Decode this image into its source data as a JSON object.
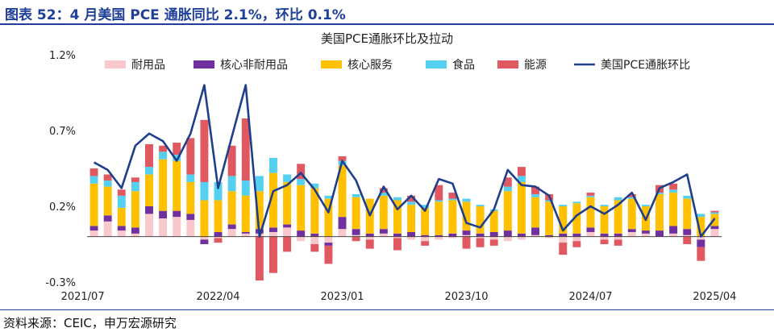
{
  "header": {
    "title": "图表 52：4 月美国 PCE 通胀同比 2.1%，环比 0.1%"
  },
  "footer": {
    "source": "资料来源：CEIC，申万宏源研究"
  },
  "colors": {
    "durable": "#f8c8cc",
    "core_nondurable": "#7030a0",
    "core_services": "#ffc000",
    "food": "#56d0f0",
    "energy": "#e05860",
    "line": "#1f3f8c",
    "title": "#1f3f99"
  },
  "chart_data": {
    "type": "bar",
    "stacked": true,
    "title": "美国PCE通胀环比及拉动",
    "x_tick_labels": [
      "2021/07",
      "2022/04",
      "2023/01",
      "2023/10",
      "2024/07",
      "2025/04"
    ],
    "y_tick_labels": [
      "1.2%",
      "0.7%",
      "0.2%",
      "-0.3%"
    ],
    "ylim": [
      -0.3,
      1.2
    ],
    "grid": false,
    "legend_position": "top",
    "categories": [
      "2021/07",
      "2021/08",
      "2021/09",
      "2021/10",
      "2021/11",
      "2021/12",
      "2022/01",
      "2022/02",
      "2022/03",
      "2022/04",
      "2022/05",
      "2022/06",
      "2022/07",
      "2022/08",
      "2022/09",
      "2022/10",
      "2022/11",
      "2022/12",
      "2023/01",
      "2023/02",
      "2023/03",
      "2023/04",
      "2023/05",
      "2023/06",
      "2023/07",
      "2023/08",
      "2023/09",
      "2023/10",
      "2023/11",
      "2023/12",
      "2024/01",
      "2024/02",
      "2024/03",
      "2024/04",
      "2024/05",
      "2024/06",
      "2024/07",
      "2024/08",
      "2024/09",
      "2024/10",
      "2024/11",
      "2024/12",
      "2025/01",
      "2025/02",
      "2025/03",
      "2025/04"
    ],
    "series": [
      {
        "name": "耐用品",
        "values": [
          0.04,
          0.1,
          0.04,
          0.02,
          0.15,
          0.12,
          0.13,
          0.11,
          -0.02,
          -0.01,
          0.05,
          0.02,
          0.02,
          0.03,
          0.06,
          -0.03,
          -0.05,
          -0.04,
          0.05,
          0.01,
          -0.02,
          0.02,
          -0.01,
          -0.02,
          -0.03,
          -0.02,
          -0.01,
          0.01,
          -0.01,
          -0.02,
          -0.03,
          -0.02,
          0.01,
          -0.01,
          -0.04,
          -0.03,
          0.03,
          -0.02,
          -0.02,
          0.03,
          0.02,
          0.0,
          0.02,
          0.01,
          -0.02,
          0.05
        ]
      },
      {
        "name": "核心非耐用品",
        "values": [
          0.03,
          0.04,
          0.03,
          0.04,
          0.05,
          0.05,
          0.04,
          0.04,
          -0.03,
          0.03,
          0.03,
          0.01,
          0.03,
          0.03,
          0.02,
          0.04,
          0.02,
          -0.02,
          0.08,
          0.04,
          0.02,
          0.03,
          0.02,
          0.03,
          0.01,
          0.01,
          0.02,
          0.03,
          0.02,
          0.03,
          0.04,
          0.02,
          0.05,
          0.01,
          0.02,
          0.02,
          0.03,
          0.02,
          0.02,
          0.02,
          0.02,
          0.04,
          0.05,
          0.04,
          -0.05,
          0.02
        ]
      },
      {
        "name": "核心服务",
        "values": [
          0.28,
          0.19,
          0.12,
          0.24,
          0.21,
          0.34,
          0.33,
          0.21,
          0.24,
          0.21,
          0.22,
          0.24,
          0.25,
          0.36,
          0.28,
          0.3,
          0.3,
          0.25,
          0.34,
          0.21,
          0.23,
          0.22,
          0.22,
          0.18,
          0.18,
          0.22,
          0.22,
          0.19,
          0.18,
          0.14,
          0.26,
          0.34,
          0.2,
          0.22,
          0.18,
          0.2,
          0.2,
          0.18,
          0.22,
          0.2,
          0.16,
          0.24,
          0.22,
          0.2,
          0.13,
          0.08
        ]
      },
      {
        "name": "食品",
        "values": [
          0.05,
          0.04,
          0.08,
          0.06,
          0.05,
          0.05,
          0.04,
          0.05,
          0.12,
          0.12,
          0.1,
          0.1,
          0.1,
          0.1,
          0.05,
          0.04,
          0.03,
          0.02,
          0.03,
          0.02,
          0.0,
          0.02,
          0.02,
          0.02,
          0.02,
          0.01,
          0.01,
          0.02,
          0.01,
          0.01,
          0.03,
          0.04,
          0.02,
          0.01,
          0.01,
          0.01,
          0.01,
          0.01,
          0.02,
          0.01,
          0.01,
          0.01,
          0.02,
          0.02,
          0.02,
          0.01
        ]
      },
      {
        "name": "能源",
        "values": [
          0.05,
          0.04,
          0.04,
          0.03,
          0.15,
          0.04,
          0.08,
          0.24,
          0.41,
          -0.03,
          0.2,
          0.41,
          -0.29,
          -0.24,
          -0.1,
          0.1,
          -0.05,
          -0.12,
          0.03,
          -0.03,
          -0.06,
          0.03,
          -0.08,
          0.04,
          -0.03,
          0.1,
          0.04,
          -0.08,
          -0.06,
          -0.04,
          0.06,
          0.06,
          0.05,
          0.04,
          -0.08,
          -0.04,
          0.02,
          -0.03,
          -0.04,
          0.02,
          0.0,
          0.05,
          0.04,
          -0.05,
          -0.09,
          0.01
        ]
      },
      {
        "name": "美国PCE通胀环比",
        "type": "line",
        "values": [
          0.49,
          0.44,
          0.32,
          0.6,
          0.68,
          0.63,
          0.5,
          0.68,
          1.0,
          0.32,
          0.66,
          1.0,
          0.0,
          0.3,
          0.34,
          0.42,
          0.31,
          0.16,
          0.5,
          0.37,
          0.14,
          0.33,
          0.18,
          0.27,
          0.17,
          0.38,
          0.35,
          0.09,
          0.06,
          0.18,
          0.44,
          0.34,
          0.33,
          0.27,
          0.04,
          0.14,
          0.2,
          0.15,
          0.21,
          0.29,
          0.11,
          0.32,
          0.36,
          0.41,
          0.0,
          0.12
        ]
      }
    ]
  }
}
